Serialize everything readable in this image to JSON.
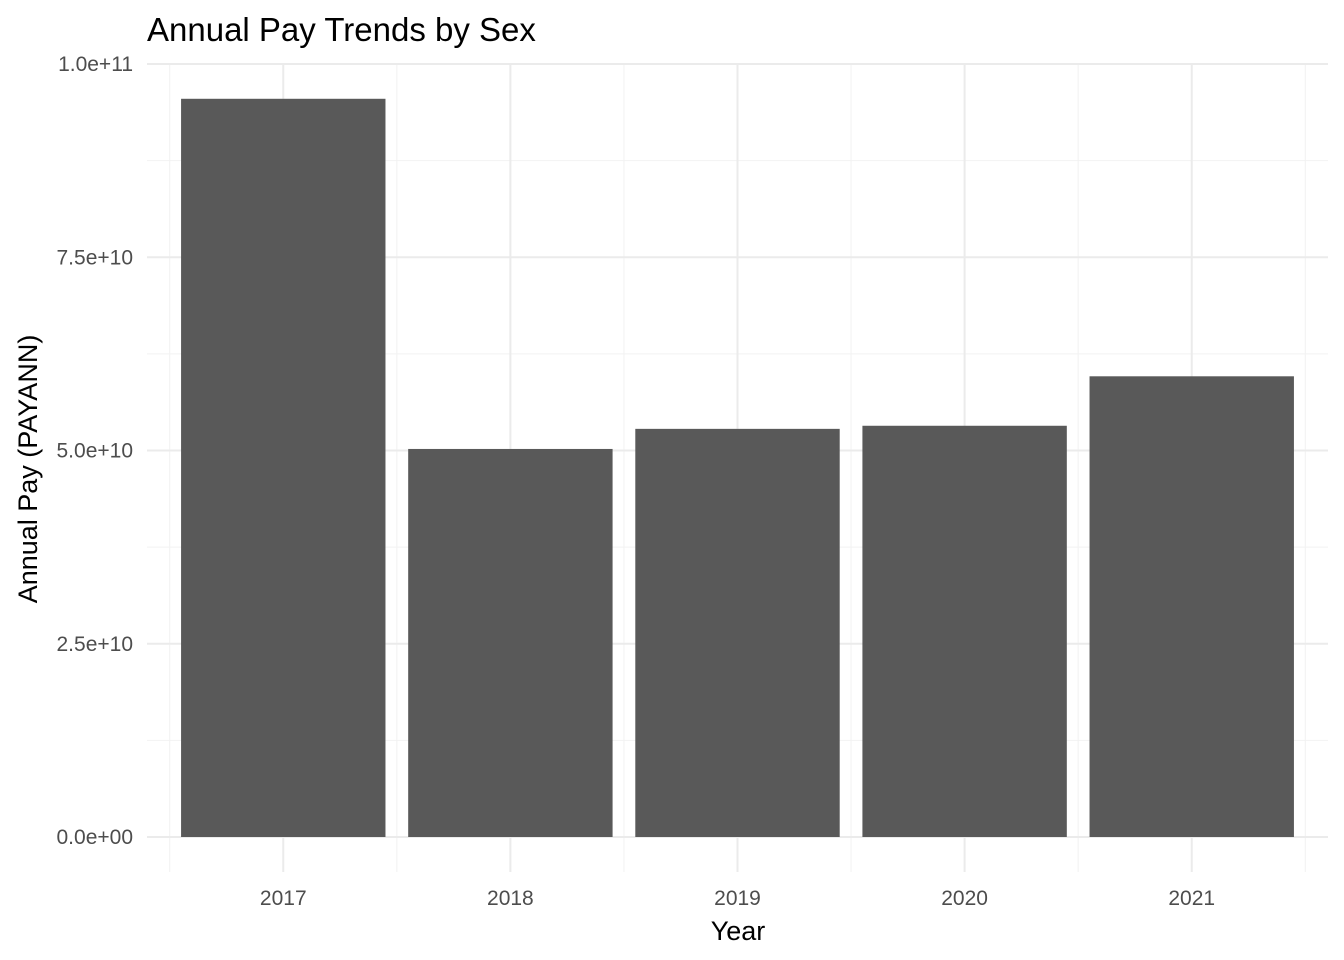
{
  "chart_data": {
    "type": "bar",
    "title": "Annual Pay Trends by Sex",
    "xlabel": "Year",
    "ylabel": "Annual Pay (PAYANN)",
    "categories": [
      "2017",
      "2018",
      "2019",
      "2020",
      "2021"
    ],
    "values": [
      95500000000,
      50200000000,
      52800000000,
      53200000000,
      59600000000
    ],
    "ylim": [
      0,
      100000000000
    ],
    "yticks": [
      0,
      25000000000,
      50000000000,
      75000000000,
      100000000000
    ],
    "ytick_labels": [
      "0.0e+00",
      "2.5e+10",
      "5.0e+10",
      "7.5e+10",
      "1.0e+11"
    ],
    "grid": true,
    "bar_color": "#595959",
    "grid_color": "#ebebeb"
  }
}
